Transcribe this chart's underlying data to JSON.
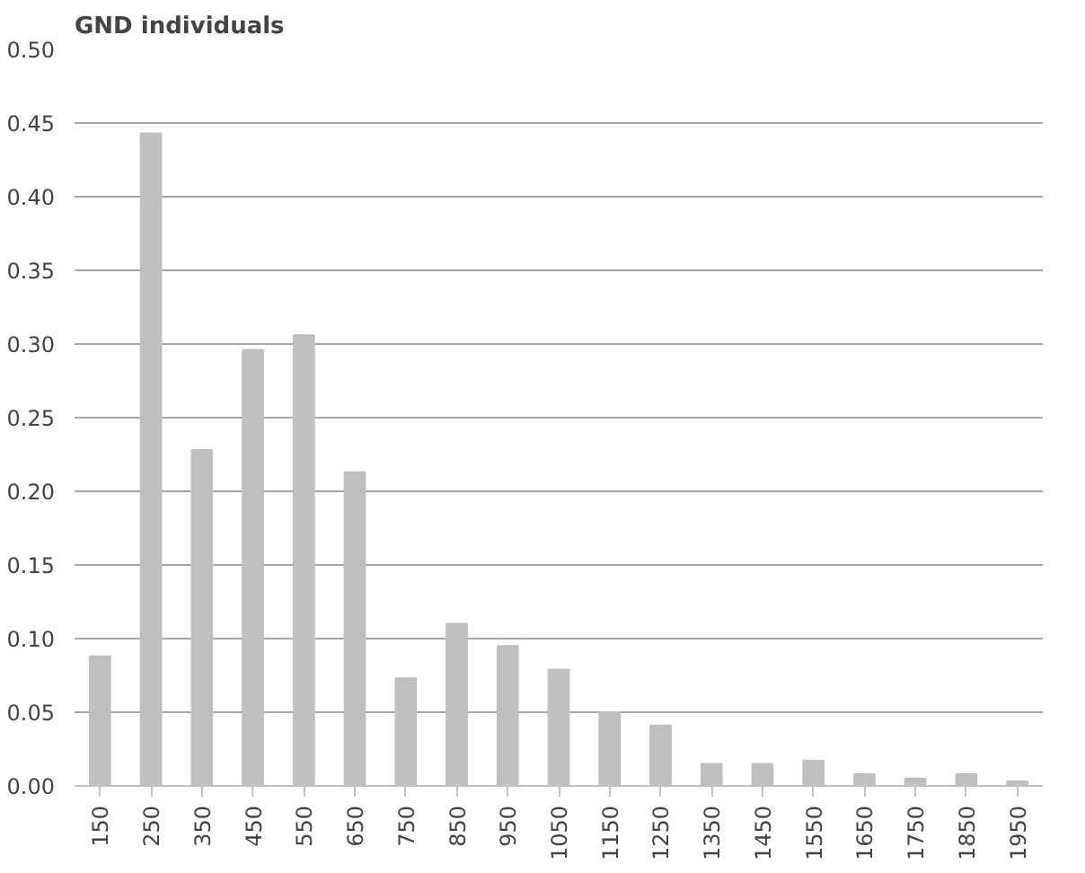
{
  "chart_data": {
    "type": "bar",
    "title": "GND individuals",
    "categories": [
      "150",
      "250",
      "350",
      "450",
      "550",
      "650",
      "750",
      "850",
      "950",
      "1050",
      "1150",
      "1250",
      "1350",
      "1450",
      "1550",
      "1650",
      "1750",
      "1850",
      "1950"
    ],
    "values": [
      0.088,
      0.443,
      0.228,
      0.296,
      0.306,
      0.213,
      0.073,
      0.11,
      0.095,
      0.079,
      0.05,
      0.041,
      0.015,
      0.015,
      0.017,
      0.008,
      0.005,
      0.008,
      0.003
    ],
    "color": "#bfbfbf",
    "ylim": [
      0,
      0.5
    ],
    "yticks": [
      {
        "value": 0,
        "label": "0.00"
      },
      {
        "value": 0.05,
        "label": "0.05"
      },
      {
        "value": 0.1,
        "label": "0.10"
      },
      {
        "value": 0.15,
        "label": "0.15"
      },
      {
        "value": 0.2,
        "label": "0.20"
      },
      {
        "value": 0.25,
        "label": "0.25"
      },
      {
        "value": 0.3,
        "label": "0.30"
      },
      {
        "value": 0.35,
        "label": "0.35"
      },
      {
        "value": 0.4,
        "label": "0.40"
      },
      {
        "value": 0.45,
        "label": "0.45"
      },
      {
        "value": 0.5,
        "label": "0.50"
      }
    ],
    "grid": "y"
  }
}
